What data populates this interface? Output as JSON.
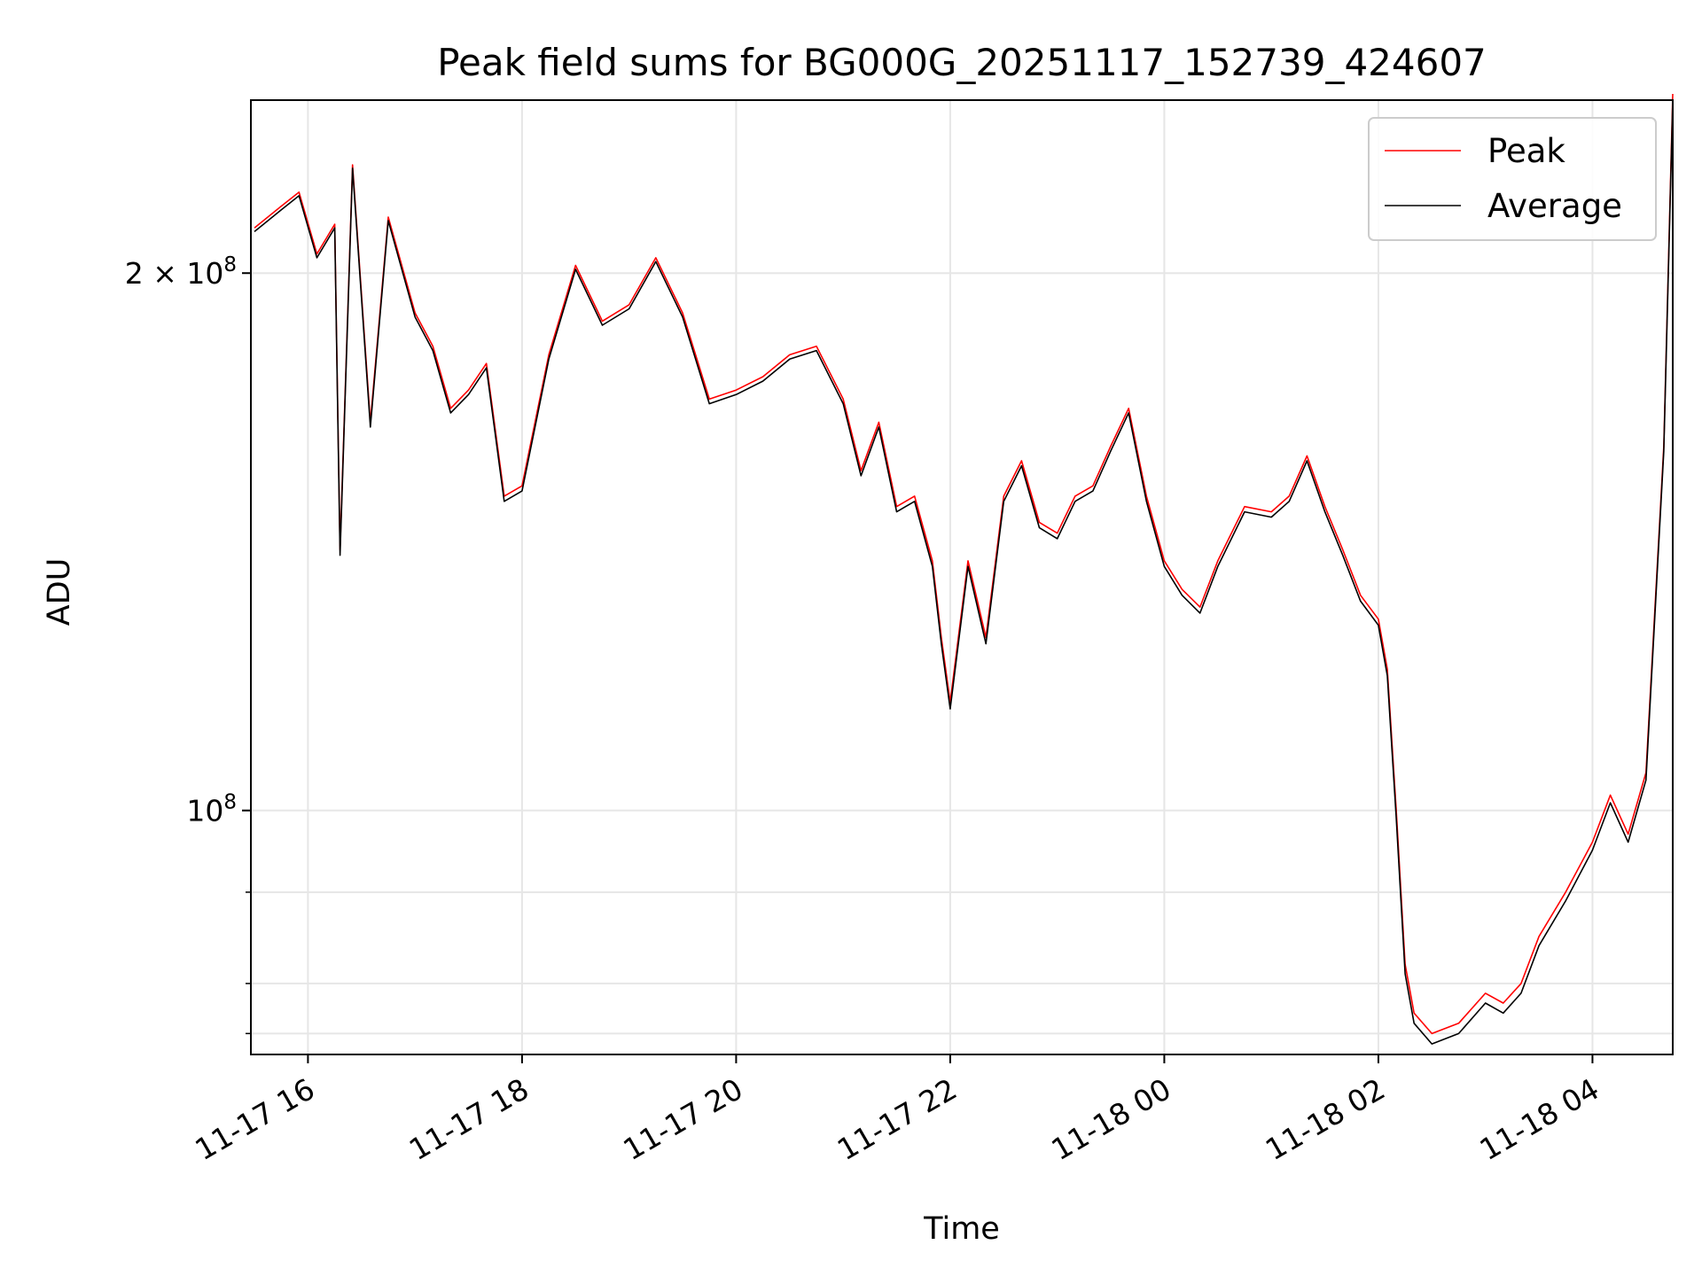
{
  "chart_data": {
    "type": "line",
    "title": "Peak field sums for BG000G_20251117_152739_424607",
    "xlabel": "Time",
    "ylabel": "ADU",
    "yscale": "log",
    "ylim": [
      73000000,
      250000000
    ],
    "xlim": [
      "11-17 15:28",
      "11-18 04:45"
    ],
    "grid": true,
    "legend_position": "top-right",
    "x_ticks": [
      "11-17 16",
      "11-17 18",
      "11-17 20",
      "11-17 22",
      "11-18 00",
      "11-18 02",
      "11-18 04"
    ],
    "y_ticks": [
      {
        "base": "2 × 10",
        "exp": "8"
      },
      {
        "base": "10",
        "exp": "8"
      }
    ],
    "colors": {
      "peak": "#ff0000",
      "average": "#000000",
      "grid": "#e6e6e6"
    },
    "x": [
      "11-17 15:30",
      "11-17 15:45",
      "11-17 15:55",
      "11-17 16:05",
      "11-17 16:15",
      "11-17 16:18",
      "11-17 16:25",
      "11-17 16:35",
      "11-17 16:45",
      "11-17 17:00",
      "11-17 17:10",
      "11-17 17:20",
      "11-17 17:30",
      "11-17 17:40",
      "11-17 17:50",
      "11-17 18:00",
      "11-17 18:15",
      "11-17 18:30",
      "11-17 18:45",
      "11-17 19:00",
      "11-17 19:15",
      "11-17 19:30",
      "11-17 19:45",
      "11-17 20:00",
      "11-17 20:15",
      "11-17 20:30",
      "11-17 20:45",
      "11-17 21:00",
      "11-17 21:10",
      "11-17 21:20",
      "11-17 21:30",
      "11-17 21:40",
      "11-17 21:50",
      "11-17 21:55",
      "11-17 22:00",
      "11-17 22:10",
      "11-17 22:20",
      "11-17 22:30",
      "11-17 22:40",
      "11-17 22:50",
      "11-17 23:00",
      "11-17 23:10",
      "11-17 23:20",
      "11-17 23:30",
      "11-17 23:40",
      "11-17 23:50",
      "11-18 00:00",
      "11-18 00:10",
      "11-18 00:20",
      "11-18 00:30",
      "11-18 00:45",
      "11-18 01:00",
      "11-18 01:10",
      "11-18 01:20",
      "11-18 01:30",
      "11-18 01:40",
      "11-18 01:50",
      "11-18 02:00",
      "11-18 02:05",
      "11-18 02:10",
      "11-18 02:15",
      "11-18 02:20",
      "11-18 02:30",
      "11-18 02:45",
      "11-18 03:00",
      "11-18 03:10",
      "11-18 03:20",
      "11-18 03:30",
      "11-18 03:45",
      "11-18 04:00",
      "11-18 04:10",
      "11-18 04:20",
      "11-18 04:30",
      "11-18 04:40",
      "11-18 04:45"
    ],
    "series": [
      {
        "name": "Peak",
        "values": [
          212,
          218,
          222,
          205,
          213,
          140,
          230,
          165,
          215,
          190,
          182,
          168,
          172,
          178,
          150,
          152,
          180,
          202,
          188,
          192,
          204,
          190,
          170,
          172,
          175,
          180,
          182,
          170,
          155,
          165,
          148,
          150,
          138,
          125,
          115,
          138,
          125,
          150,
          157,
          145,
          143,
          150,
          152,
          160,
          168,
          150,
          138,
          133,
          130,
          138,
          148,
          147,
          150,
          158,
          148,
          140,
          132,
          128,
          120,
          100,
          82,
          77,
          75,
          76,
          79,
          78,
          80,
          85,
          90,
          96,
          102,
          97,
          105,
          160,
          252
        ]
      },
      {
        "name": "Average",
        "values": [
          211,
          217,
          221,
          204,
          212,
          139,
          229,
          164,
          214,
          189,
          181,
          167,
          171,
          177,
          149,
          151,
          179,
          201,
          187,
          191,
          203,
          189,
          169,
          171,
          174,
          179,
          181,
          169,
          154,
          164,
          147,
          149,
          137,
          124,
          114,
          137,
          124,
          149,
          156,
          144,
          142,
          149,
          151,
          159,
          167,
          149,
          137,
          132,
          129,
          137,
          147,
          146,
          149,
          157,
          147,
          139,
          131,
          127,
          119,
          99,
          81,
          76,
          74,
          75,
          78,
          77,
          79,
          84,
          89,
          95,
          101,
          96,
          104,
          159,
          250
        ]
      }
    ]
  }
}
